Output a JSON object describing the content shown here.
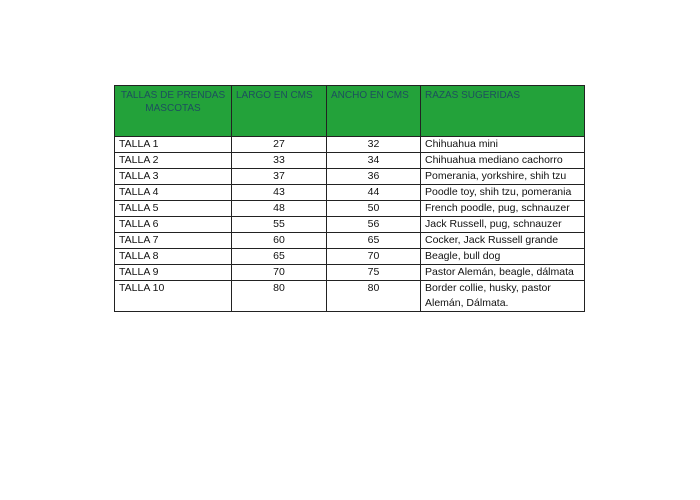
{
  "table": {
    "headers": [
      "TALLAS DE PRENDAS MASCOTAS",
      "LARGO EN CMS",
      "ANCHO EN CMS",
      "RAZAS SUGERIDAS"
    ],
    "header_color": "#23a23a",
    "rows": [
      [
        "TALLA 1",
        "27",
        "32",
        "Chihuahua mini"
      ],
      [
        "TALLA 2",
        "33",
        "34",
        "Chihuahua mediano cachorro"
      ],
      [
        "TALLA 3",
        "37",
        "36",
        "Pomerania, yorkshire, shih tzu"
      ],
      [
        "TALLA 4",
        "43",
        "44",
        "Poodle toy,  shih tzu, pomerania"
      ],
      [
        "TALLA 5",
        "48",
        "50",
        "French poodle, pug, schnauzer"
      ],
      [
        "TALLA 6",
        "55",
        "56",
        "Jack Russell, pug, schnauzer"
      ],
      [
        "TALLA 7",
        "60",
        "65",
        "Cocker, Jack Russell grande"
      ],
      [
        "TALLA 8",
        "65",
        "70",
        "Beagle, bull dog"
      ],
      [
        "TALLA 9",
        "70",
        "75",
        "Pastor Alemán, beagle, dálmata"
      ],
      [
        "TALLA 10",
        "80",
        "80",
        "Border collie, husky, pastor Alemán, Dálmata."
      ]
    ]
  }
}
